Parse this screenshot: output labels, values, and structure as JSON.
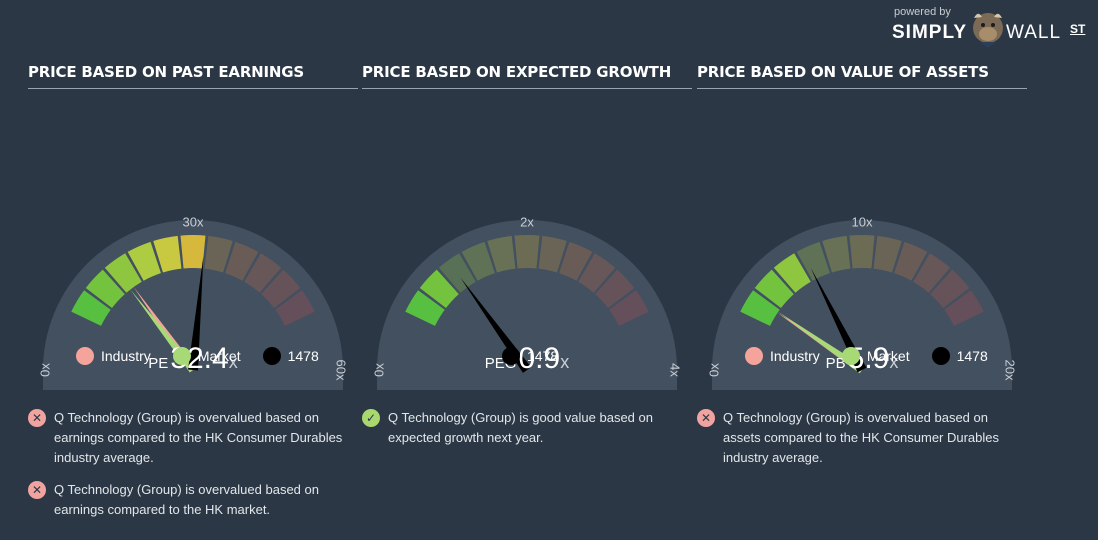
{
  "brand": {
    "powered_by": "powered by",
    "name_left": "SIMPLY",
    "name_right": "WALL",
    "name_suffix": "ST"
  },
  "colors": {
    "industry": "#f4a49a",
    "market": "#a8d977",
    "company": "#000000",
    "bad": "#f1a3a0",
    "good": "#a9d86e"
  },
  "panels": [
    {
      "title": "PRICE BASED ON PAST EARNINGS",
      "gauge": {
        "min_label": "0x",
        "mid_label": "30x",
        "max_label": "60x",
        "max": 60,
        "metric_label": "PE",
        "value_label": "32.4",
        "unit": "x",
        "company_value": 32.4,
        "industry_value": 13.6,
        "market_value": 12.5
      },
      "legend": [
        {
          "label": "Industry",
          "color_key": "industry"
        },
        {
          "label": "Market",
          "color_key": "market"
        },
        {
          "label": "1478",
          "color_key": "company"
        }
      ],
      "notes": [
        {
          "status": "bad",
          "icon": "x-circle-icon",
          "text": "Q Technology (Group) is overvalued based on earnings compared to the HK Consumer Durables industry average."
        },
        {
          "status": "bad",
          "icon": "x-circle-icon",
          "text": "Q Technology (Group) is overvalued based on earnings compared to the HK market."
        }
      ]
    },
    {
      "title": "PRICE BASED ON EXPECTED GROWTH",
      "gauge": {
        "min_label": "0x",
        "mid_label": "2x",
        "max_label": "4x",
        "max": 4,
        "metric_label": "PEG",
        "value_label": "0.9",
        "unit": "x",
        "company_value": 0.9,
        "industry_value": null,
        "market_value": null
      },
      "legend": [
        {
          "label": "1478",
          "color_key": "company"
        }
      ],
      "notes": [
        {
          "status": "good",
          "icon": "check-circle-icon",
          "text": "Q Technology (Group) is good value based on expected growth next year."
        }
      ]
    },
    {
      "title": "PRICE BASED ON VALUE OF ASSETS",
      "gauge": {
        "min_label": "0x",
        "mid_label": "10x",
        "max_label": "20x",
        "max": 20,
        "metric_label": "PB",
        "value_label": "5.9",
        "unit": "x",
        "company_value": 5.9,
        "industry_value": 1.4,
        "market_value": 1.5
      },
      "legend": [
        {
          "label": "Industry",
          "color_key": "industry"
        },
        {
          "label": "Market",
          "color_key": "market"
        },
        {
          "label": "1478",
          "color_key": "company"
        }
      ],
      "notes": [
        {
          "status": "bad",
          "icon": "x-circle-icon",
          "text": "Q Technology (Group) is overvalued based on assets compared to the HK Consumer Durables industry average."
        }
      ]
    }
  ]
}
